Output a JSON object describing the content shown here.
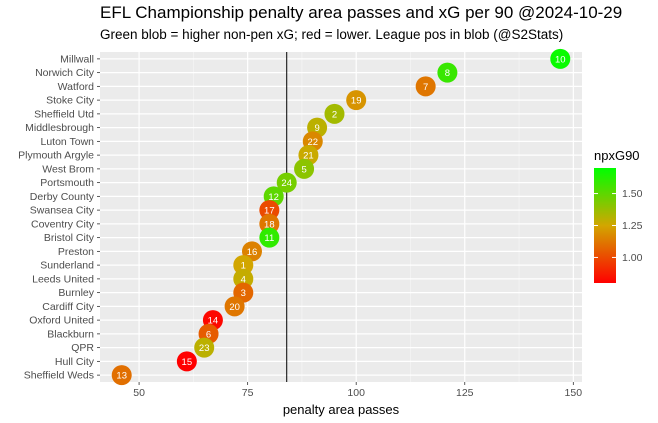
{
  "chart_data": {
    "type": "scatter",
    "title": "EFL Championship penalty area passes and xG per 90 @2024-10-29",
    "subtitle": "Green blob = higher non-pen xG; red = lower. League pos in blob (@S2Stats)",
    "xlabel": "penalty area passes",
    "ylabel": "",
    "xlim": [
      41,
      152
    ],
    "x_ticks": [
      50,
      75,
      100,
      125,
      150
    ],
    "vline_x": 84,
    "legend": {
      "title": "npxG90",
      "ticks": [
        1.0,
        1.25,
        1.5
      ],
      "range": [
        0.8,
        1.7
      ],
      "low_color": "#ff0000",
      "mid_color": "#d2a600",
      "high_color": "#00ff00",
      "position": "right"
    },
    "teams": [
      {
        "team": "Millwall",
        "x": 147,
        "pos": "10",
        "npxg": 1.68
      },
      {
        "team": "Norwich City",
        "x": 121,
        "pos": "8",
        "npxg": 1.58
      },
      {
        "team": "Watford",
        "x": 116,
        "pos": "7",
        "npxg": 1.12
      },
      {
        "team": "Stoke City",
        "x": 100,
        "pos": "19",
        "npxg": 1.2
      },
      {
        "team": "Sheffield Utd",
        "x": 95,
        "pos": "2",
        "npxg": 1.35
      },
      {
        "team": "Middlesbrough",
        "x": 91,
        "pos": "9",
        "npxg": 1.3
      },
      {
        "team": "Luton Town",
        "x": 90,
        "pos": "22",
        "npxg": 1.17
      },
      {
        "team": "Plymouth Argyle",
        "x": 89,
        "pos": "21",
        "npxg": 1.27
      },
      {
        "team": "West Brom",
        "x": 88,
        "pos": "5",
        "npxg": 1.4
      },
      {
        "team": "Portsmouth",
        "x": 84,
        "pos": "24",
        "npxg": 1.45
      },
      {
        "team": "Derby County",
        "x": 81,
        "pos": "12",
        "npxg": 1.5
      },
      {
        "team": "Swansea City",
        "x": 80,
        "pos": "17",
        "npxg": 1.0
      },
      {
        "team": "Coventry City",
        "x": 80,
        "pos": "18",
        "npxg": 1.12
      },
      {
        "team": "Bristol City",
        "x": 80,
        "pos": "11",
        "npxg": 1.6
      },
      {
        "team": "Preston",
        "x": 76,
        "pos": "16",
        "npxg": 1.15
      },
      {
        "team": "Sunderland",
        "x": 74,
        "pos": "1",
        "npxg": 1.25
      },
      {
        "team": "Leeds United",
        "x": 74,
        "pos": "4",
        "npxg": 1.28
      },
      {
        "team": "Burnley",
        "x": 74,
        "pos": "3",
        "npxg": 1.08
      },
      {
        "team": "Cardiff City",
        "x": 72,
        "pos": "20",
        "npxg": 1.12
      },
      {
        "team": "Oxford United",
        "x": 67,
        "pos": "14",
        "npxg": 0.82
      },
      {
        "team": "Blackburn",
        "x": 66,
        "pos": "6",
        "npxg": 1.05
      },
      {
        "team": "QPR",
        "x": 65,
        "pos": "23",
        "npxg": 1.3
      },
      {
        "team": "Hull City",
        "x": 61,
        "pos": "15",
        "npxg": 0.8
      },
      {
        "team": "Sheffield Weds",
        "x": 46,
        "pos": "13",
        "npxg": 1.1
      }
    ]
  }
}
